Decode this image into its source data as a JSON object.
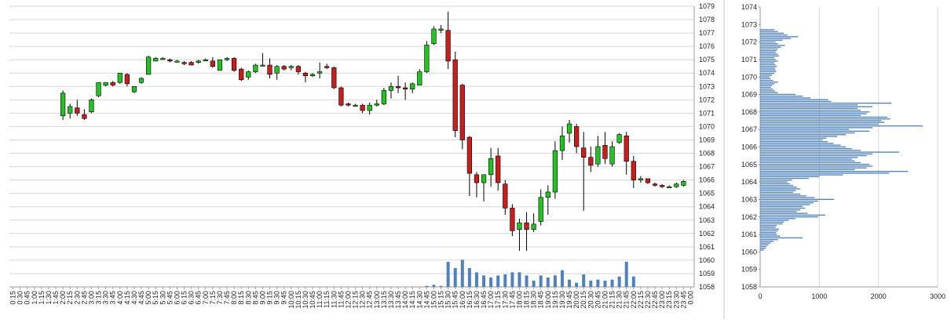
{
  "chart_data": [
    {
      "type": "candlestick",
      "title": "",
      "ylim": [
        1058,
        1079
      ],
      "y_ticks": [
        "1058",
        "1059",
        "1060",
        "1061",
        "1062",
        "1063",
        "1064",
        "1065",
        "1066",
        "1067",
        "1068",
        "1069",
        "1070",
        "1071",
        "1072",
        "1073",
        "1074",
        "1075",
        "1076",
        "1077",
        "1078",
        "1079"
      ],
      "x_ticks": [
        "0:15",
        "0:30",
        "0:45",
        "1:00",
        "1:15",
        "1:30",
        "1:45",
        "2:00",
        "2:15",
        "2:30",
        "2:45",
        "3:00",
        "3:15",
        "3:30",
        "3:45",
        "4:00",
        "4:15",
        "4:30",
        "4:45",
        "5:00",
        "5:15",
        "5:30",
        "5:45",
        "6:00",
        "6:15",
        "6:30",
        "6:45",
        "7:00",
        "7:15",
        "7:30",
        "7:45",
        "8:00",
        "8:15",
        "8:30",
        "8:45",
        "9:00",
        "9:15",
        "9:30",
        "9:45",
        "10:00",
        "10:15",
        "10:30",
        "10:45",
        "11:00",
        "11:15",
        "11:30",
        "11:45",
        "12:00",
        "12:15",
        "12:30",
        "12:45",
        "13:00",
        "13:15",
        "13:30",
        "13:45",
        "14:00",
        "14:15",
        "14:30",
        "14:45",
        "15:00",
        "15:15",
        "15:30",
        "15:45",
        "16:00",
        "16:15",
        "16:30",
        "16:45",
        "17:00",
        "17:15",
        "17:30",
        "17:45",
        "18:00",
        "18:15",
        "18:30",
        "18:45",
        "19:00",
        "19:15",
        "19:30",
        "19:45",
        "20:00",
        "20:15",
        "20:30",
        "20:45",
        "21:00",
        "21:15",
        "21:30",
        "21:45",
        "22:00",
        "22:15",
        "22:30",
        "22:45",
        "23:00",
        "23:15",
        "23:30",
        "23:45",
        "0:00"
      ],
      "colors": {
        "up": "#22c322",
        "down": "#c81e1e",
        "volume": "#4f81bd",
        "grid": "#d6d6d6"
      },
      "candles": [
        {
          "t": "2:00",
          "o": 1070.8,
          "h": 1072.7,
          "l": 1070.5,
          "c": 1072.5
        },
        {
          "t": "2:15",
          "o": 1071.0,
          "h": 1071.7,
          "l": 1070.6,
          "c": 1071.5
        },
        {
          "t": "2:30",
          "o": 1071.4,
          "h": 1072.0,
          "l": 1070.8,
          "c": 1071.0
        },
        {
          "t": "2:45",
          "o": 1070.9,
          "h": 1071.3,
          "l": 1070.5,
          "c": 1070.6
        },
        {
          "t": "3:00",
          "o": 1071.1,
          "h": 1072.1,
          "l": 1071.0,
          "c": 1072.0
        },
        {
          "t": "3:15",
          "o": 1072.3,
          "h": 1073.3,
          "l": 1072.2,
          "c": 1073.3
        },
        {
          "t": "3:30",
          "o": 1073.1,
          "h": 1073.3,
          "l": 1073.0,
          "c": 1073.3
        },
        {
          "t": "3:45",
          "o": 1073.3,
          "h": 1073.4,
          "l": 1073.0,
          "c": 1073.1
        },
        {
          "t": "4:00",
          "o": 1073.3,
          "h": 1074.0,
          "l": 1073.2,
          "c": 1074.0
        },
        {
          "t": "4:15",
          "o": 1073.9,
          "h": 1074.0,
          "l": 1073.0,
          "c": 1073.2
        },
        {
          "t": "4:30",
          "o": 1072.6,
          "h": 1073.0,
          "l": 1072.5,
          "c": 1073.0
        },
        {
          "t": "4:45",
          "o": 1073.3,
          "h": 1073.7,
          "l": 1073.2,
          "c": 1073.6
        },
        {
          "t": "5:00",
          "o": 1073.9,
          "h": 1075.3,
          "l": 1073.9,
          "c": 1075.2
        },
        {
          "t": "5:15",
          "o": 1074.9,
          "h": 1075.2,
          "l": 1074.9,
          "c": 1075.1
        },
        {
          "t": "5:30",
          "o": 1075.1,
          "h": 1075.2,
          "l": 1075.0,
          "c": 1075.1
        },
        {
          "t": "5:45",
          "o": 1075.0,
          "h": 1075.1,
          "l": 1074.8,
          "c": 1074.9
        },
        {
          "t": "6:00",
          "o": 1074.9,
          "h": 1075.0,
          "l": 1074.8,
          "c": 1074.9
        },
        {
          "t": "6:15",
          "o": 1074.8,
          "h": 1074.9,
          "l": 1074.6,
          "c": 1074.7
        },
        {
          "t": "6:30",
          "o": 1074.8,
          "h": 1074.9,
          "l": 1074.6,
          "c": 1074.6
        },
        {
          "t": "6:45",
          "o": 1074.8,
          "h": 1075.0,
          "l": 1074.7,
          "c": 1074.9
        },
        {
          "t": "7:00",
          "o": 1075.0,
          "h": 1075.1,
          "l": 1074.9,
          "c": 1075.0
        },
        {
          "t": "7:15",
          "o": 1074.9,
          "h": 1075.2,
          "l": 1074.4,
          "c": 1074.5
        },
        {
          "t": "7:30",
          "o": 1074.2,
          "h": 1075.0,
          "l": 1074.2,
          "c": 1075.0
        },
        {
          "t": "7:45",
          "o": 1075.0,
          "h": 1075.2,
          "l": 1074.9,
          "c": 1075.1
        },
        {
          "t": "8:00",
          "o": 1075.1,
          "h": 1075.2,
          "l": 1074.1,
          "c": 1074.2
        },
        {
          "t": "8:15",
          "o": 1074.3,
          "h": 1074.4,
          "l": 1073.4,
          "c": 1073.5
        },
        {
          "t": "8:30",
          "o": 1073.7,
          "h": 1074.2,
          "l": 1073.5,
          "c": 1074.1
        },
        {
          "t": "8:45",
          "o": 1074.1,
          "h": 1074.7,
          "l": 1074.0,
          "c": 1074.6
        },
        {
          "t": "9:00",
          "o": 1074.6,
          "h": 1075.5,
          "l": 1074.5,
          "c": 1074.6
        },
        {
          "t": "9:15",
          "o": 1074.6,
          "h": 1075.1,
          "l": 1073.6,
          "c": 1073.9
        },
        {
          "t": "9:30",
          "o": 1074.0,
          "h": 1074.6,
          "l": 1073.5,
          "c": 1074.5
        },
        {
          "t": "9:45",
          "o": 1074.5,
          "h": 1074.6,
          "l": 1074.2,
          "c": 1074.3
        },
        {
          "t": "10:00",
          "o": 1074.4,
          "h": 1074.6,
          "l": 1074.2,
          "c": 1074.5
        },
        {
          "t": "10:15",
          "o": 1074.5,
          "h": 1074.6,
          "l": 1073.9,
          "c": 1074.1
        },
        {
          "t": "10:30",
          "o": 1074.0,
          "h": 1074.1,
          "l": 1073.3,
          "c": 1073.8
        },
        {
          "t": "10:45",
          "o": 1073.8,
          "h": 1074.0,
          "l": 1073.7,
          "c": 1073.9
        },
        {
          "t": "11:00",
          "o": 1074.0,
          "h": 1074.8,
          "l": 1073.6,
          "c": 1074.1
        },
        {
          "t": "11:15",
          "o": 1074.5,
          "h": 1074.7,
          "l": 1074.3,
          "c": 1074.4
        },
        {
          "t": "11:30",
          "o": 1074.4,
          "h": 1074.5,
          "l": 1072.8,
          "c": 1072.9
        },
        {
          "t": "11:45",
          "o": 1072.9,
          "h": 1073.0,
          "l": 1071.5,
          "c": 1071.6
        },
        {
          "t": "12:00",
          "o": 1071.7,
          "h": 1071.8,
          "l": 1071.5,
          "c": 1071.6
        },
        {
          "t": "12:15",
          "o": 1071.6,
          "h": 1071.7,
          "l": 1071.5,
          "c": 1071.6
        },
        {
          "t": "12:30",
          "o": 1071.6,
          "h": 1071.7,
          "l": 1071.0,
          "c": 1071.2
        },
        {
          "t": "12:45",
          "o": 1071.2,
          "h": 1071.8,
          "l": 1070.9,
          "c": 1071.6
        },
        {
          "t": "13:00",
          "o": 1071.6,
          "h": 1072.0,
          "l": 1071.5,
          "c": 1071.7
        },
        {
          "t": "13:15",
          "o": 1071.7,
          "h": 1072.9,
          "l": 1071.6,
          "c": 1072.7
        },
        {
          "t": "13:30",
          "o": 1072.7,
          "h": 1073.3,
          "l": 1072.1,
          "c": 1073.0
        },
        {
          "t": "13:45",
          "o": 1073.0,
          "h": 1073.8,
          "l": 1072.5,
          "c": 1072.9
        },
        {
          "t": "14:00",
          "o": 1072.9,
          "h": 1073.3,
          "l": 1072.0,
          "c": 1072.8
        },
        {
          "t": "14:15",
          "o": 1072.8,
          "h": 1073.3,
          "l": 1072.5,
          "c": 1073.2
        },
        {
          "t": "14:30",
          "o": 1073.1,
          "h": 1074.3,
          "l": 1073.1,
          "c": 1074.1
        },
        {
          "t": "14:45",
          "o": 1074.1,
          "h": 1076.4,
          "l": 1074.0,
          "c": 1076.1
        },
        {
          "t": "15:00",
          "o": 1076.2,
          "h": 1077.5,
          "l": 1076.1,
          "c": 1077.3
        },
        {
          "t": "15:15",
          "o": 1077.2,
          "h": 1077.6,
          "l": 1077.0,
          "c": 1077.3
        },
        {
          "t": "15:30",
          "o": 1077.2,
          "h": 1078.6,
          "l": 1074.3,
          "c": 1074.9
        },
        {
          "t": "15:45",
          "o": 1075.0,
          "h": 1075.6,
          "l": 1069.2,
          "c": 1069.7
        },
        {
          "t": "16:00",
          "o": 1073.1,
          "h": 1073.2,
          "l": 1068.3,
          "c": 1069.0
        },
        {
          "t": "16:15",
          "o": 1069.2,
          "h": 1069.3,
          "l": 1064.8,
          "c": 1066.5
        },
        {
          "t": "16:30",
          "o": 1066.4,
          "h": 1066.6,
          "l": 1064.7,
          "c": 1065.8
        },
        {
          "t": "16:45",
          "o": 1065.8,
          "h": 1066.4,
          "l": 1064.4,
          "c": 1066.4
        },
        {
          "t": "17:00",
          "o": 1066.4,
          "h": 1068.4,
          "l": 1065.5,
          "c": 1067.6
        },
        {
          "t": "17:15",
          "o": 1067.8,
          "h": 1068.4,
          "l": 1065.2,
          "c": 1065.8
        },
        {
          "t": "17:30",
          "o": 1065.7,
          "h": 1066.0,
          "l": 1063.4,
          "c": 1063.9
        },
        {
          "t": "17:45",
          "o": 1063.9,
          "h": 1064.2,
          "l": 1061.8,
          "c": 1062.2
        },
        {
          "t": "18:00",
          "o": 1062.3,
          "h": 1063.1,
          "l": 1060.7,
          "c": 1062.8
        },
        {
          "t": "18:15",
          "o": 1062.8,
          "h": 1063.6,
          "l": 1060.7,
          "c": 1062.3
        },
        {
          "t": "18:30",
          "o": 1062.3,
          "h": 1063.5,
          "l": 1062.1,
          "c": 1062.7
        },
        {
          "t": "18:45",
          "o": 1062.9,
          "h": 1065.3,
          "l": 1062.6,
          "c": 1064.7
        },
        {
          "t": "19:00",
          "o": 1064.7,
          "h": 1065.6,
          "l": 1063.4,
          "c": 1065.1
        },
        {
          "t": "19:15",
          "o": 1065.1,
          "h": 1068.9,
          "l": 1064.6,
          "c": 1068.2
        },
        {
          "t": "19:30",
          "o": 1068.2,
          "h": 1070.0,
          "l": 1067.5,
          "c": 1069.3
        },
        {
          "t": "19:45",
          "o": 1069.5,
          "h": 1070.5,
          "l": 1068.8,
          "c": 1070.2
        },
        {
          "t": "20:00",
          "o": 1070.0,
          "h": 1070.2,
          "l": 1068.0,
          "c": 1068.5
        },
        {
          "t": "20:15",
          "o": 1068.4,
          "h": 1069.6,
          "l": 1063.7,
          "c": 1067.7
        },
        {
          "t": "20:30",
          "o": 1067.7,
          "h": 1068.5,
          "l": 1066.6,
          "c": 1067.1
        },
        {
          "t": "20:45",
          "o": 1067.2,
          "h": 1069.3,
          "l": 1067.0,
          "c": 1068.5
        },
        {
          "t": "21:00",
          "o": 1068.6,
          "h": 1069.6,
          "l": 1067.2,
          "c": 1067.6
        },
        {
          "t": "21:15",
          "o": 1067.2,
          "h": 1068.9,
          "l": 1067.0,
          "c": 1068.5
        },
        {
          "t": "21:30",
          "o": 1068.8,
          "h": 1069.5,
          "l": 1068.7,
          "c": 1069.4
        },
        {
          "t": "21:45",
          "o": 1069.3,
          "h": 1069.6,
          "l": 1066.4,
          "c": 1067.4
        },
        {
          "t": "22:00",
          "o": 1067.4,
          "h": 1067.8,
          "l": 1065.4,
          "c": 1066.0
        },
        {
          "t": "22:15",
          "o": 1066.0,
          "h": 1066.3,
          "l": 1065.8,
          "c": 1066.1
        },
        {
          "t": "22:30",
          "o": 1066.1,
          "h": 1066.1,
          "l": 1065.7,
          "c": 1065.8
        },
        {
          "t": "22:45",
          "o": 1065.7,
          "h": 1065.8,
          "l": 1065.5,
          "c": 1065.6
        },
        {
          "t": "23:00",
          "o": 1065.6,
          "h": 1065.7,
          "l": 1065.4,
          "c": 1065.5
        },
        {
          "t": "23:15",
          "o": 1065.5,
          "h": 1065.6,
          "l": 1065.4,
          "c": 1065.5
        },
        {
          "t": "23:30",
          "o": 1065.5,
          "h": 1065.8,
          "l": 1065.4,
          "c": 1065.7
        },
        {
          "t": "23:45",
          "o": 1065.6,
          "h": 1066.0,
          "l": 1065.5,
          "c": 1065.9
        }
      ],
      "volume": [
        {
          "t": "14:45",
          "v": 1
        },
        {
          "t": "15:00",
          "v": 2
        },
        {
          "t": "15:15",
          "v": 1
        },
        {
          "t": "15:30",
          "v": 24
        },
        {
          "t": "15:45",
          "v": 18
        },
        {
          "t": "16:00",
          "v": 26
        },
        {
          "t": "16:15",
          "v": 18
        },
        {
          "t": "16:30",
          "v": 14
        },
        {
          "t": "16:45",
          "v": 11
        },
        {
          "t": "17:00",
          "v": 9
        },
        {
          "t": "17:15",
          "v": 11
        },
        {
          "t": "17:30",
          "v": 12
        },
        {
          "t": "17:45",
          "v": 14
        },
        {
          "t": "18:00",
          "v": 14
        },
        {
          "t": "18:15",
          "v": 11
        },
        {
          "t": "18:30",
          "v": 6
        },
        {
          "t": "18:45",
          "v": 11
        },
        {
          "t": "19:00",
          "v": 9
        },
        {
          "t": "19:15",
          "v": 11
        },
        {
          "t": "19:30",
          "v": 16
        },
        {
          "t": "19:45",
          "v": 7
        },
        {
          "t": "20:00",
          "v": 4
        },
        {
          "t": "20:15",
          "v": 12
        },
        {
          "t": "20:30",
          "v": 6
        },
        {
          "t": "20:45",
          "v": 7
        },
        {
          "t": "21:00",
          "v": 6
        },
        {
          "t": "21:15",
          "v": 7
        },
        {
          "t": "21:30",
          "v": 10
        },
        {
          "t": "21:45",
          "v": 24
        },
        {
          "t": "22:00",
          "v": 10
        }
      ]
    },
    {
      "type": "bar",
      "orientation": "horizontal",
      "title": "",
      "xlim": [
        0,
        3000
      ],
      "x_ticks": [
        "0",
        "1000",
        "2000",
        "3000"
      ],
      "ylim": [
        1058,
        1074
      ],
      "y_ticks": [
        "1058",
        "1059",
        "1060",
        "1061",
        "1062",
        "1063",
        "1064",
        "1065",
        "1066",
        "1067",
        "1068",
        "1069",
        "1070",
        "1071",
        "1072",
        "1073",
        "1074"
      ],
      "color": "#4f81bd",
      "price_step": 0.1,
      "price_start": 1060.1,
      "values": [
        60,
        90,
        110,
        140,
        180,
        230,
        300,
        720,
        340,
        280,
        270,
        300,
        320,
        260,
        280,
        380,
        400,
        480,
        600,
        980,
        1100,
        800,
        620,
        680,
        760,
        720,
        840,
        900,
        980,
        1250,
        920,
        780,
        680,
        560,
        600,
        680,
        620,
        560,
        500,
        460,
        540,
        820,
        1000,
        1400,
        2180,
        2500,
        1600,
        1800,
        1900,
        1850,
        1700,
        1600,
        1550,
        1650,
        1800,
        1900,
        2350,
        1700,
        1550,
        1450,
        1360,
        1240,
        1140,
        1060,
        1120,
        1300,
        1450,
        1600,
        1850,
        1500,
        1900,
        2750,
        2000,
        2100,
        2050,
        2200,
        2150,
        1700,
        1800,
        1850,
        1700,
        1650,
        1900,
        1650,
        2220,
        1200,
        1150,
        850,
        720,
        600,
        300,
        250,
        220,
        180,
        200,
        240,
        300,
        220,
        180,
        160,
        200,
        240,
        270,
        260,
        250,
        280,
        260,
        240,
        300,
        260,
        240,
        320,
        300,
        260,
        280,
        300,
        350,
        420,
        300,
        260,
        380,
        520,
        640,
        460,
        400,
        300,
        240
      ]
    }
  ]
}
